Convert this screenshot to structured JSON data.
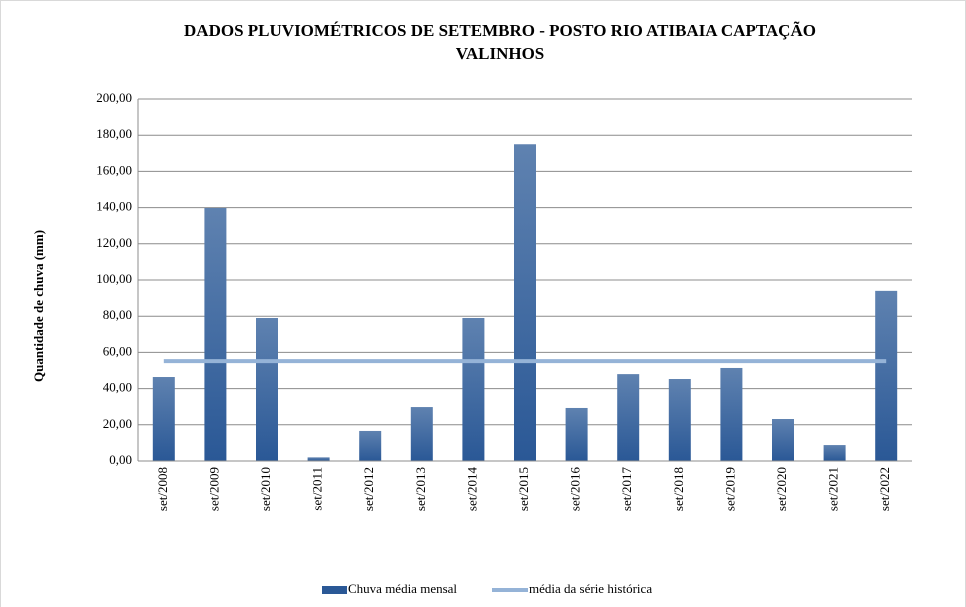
{
  "chart_data": {
    "type": "bar",
    "title": "DADOS PLUVIOMÉTRICOS  DE SETEMBRO - POSTO RIO ATIBAIA CAPTAÇÃO",
    "subtitle": "VALINHOS",
    "y_label": "Quantidade  de chuva (mm)",
    "categories": [
      "set/2008",
      "set/2009",
      "set/2010",
      "set/2011",
      "set/2012",
      "set/2013",
      "set/2014",
      "set/2015",
      "set/2016",
      "set/2017",
      "set/2018",
      "set/2019",
      "set/2020",
      "set/2021",
      "set/2022"
    ],
    "series": [
      {
        "name": "Chuva média mensal",
        "type": "bar",
        "color": "#2a5896",
        "values": [
          46.4,
          139.8,
          79.0,
          2.0,
          16.6,
          29.8,
          79.0,
          175.0,
          29.3,
          48.0,
          45.3,
          51.4,
          23.2,
          8.8,
          94.0
        ]
      },
      {
        "name": "média da série histórica",
        "type": "line",
        "color": "#95b3d7",
        "values": [
          55.2,
          55.2,
          55.2,
          55.2,
          55.2,
          55.2,
          55.2,
          55.2,
          55.2,
          55.2,
          55.2,
          55.2,
          55.2,
          55.2,
          55.2
        ]
      }
    ],
    "ylim": [
      0,
      200
    ],
    "yticks": [
      {
        "value": 0,
        "label": "0,00"
      },
      {
        "value": 20,
        "label": "20,00"
      },
      {
        "value": 40,
        "label": "40,00"
      },
      {
        "value": 60,
        "label": "60,00"
      },
      {
        "value": 80,
        "label": "80,00"
      },
      {
        "value": 100,
        "label": "100,00"
      },
      {
        "value": 120,
        "label": "120,00"
      },
      {
        "value": 140,
        "label": "140,00"
      },
      {
        "value": 160,
        "label": "160,00"
      },
      {
        "value": 180,
        "label": "180,00"
      },
      {
        "value": 200,
        "label": "200,00"
      }
    ],
    "grid": true,
    "legend": "bottom"
  }
}
